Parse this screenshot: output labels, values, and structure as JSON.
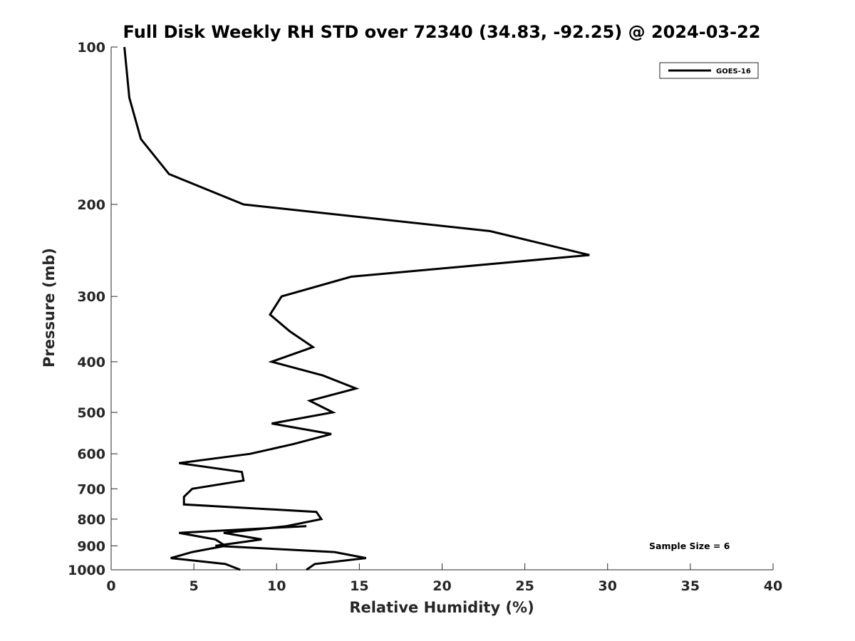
{
  "chart_data": {
    "type": "line",
    "title": "Full Disk Weekly RH STD over 72340 (34.83, -92.25) @ 2024-03-22",
    "xlabel": "Relative Humidity (%)",
    "ylabel": "Pressure (mb)",
    "xlim": [
      0,
      40
    ],
    "ylim": [
      100,
      1000
    ],
    "y_scale": "log",
    "y_reversed": true,
    "x_ticks": [
      0,
      5,
      10,
      15,
      20,
      25,
      30,
      35,
      40
    ],
    "x_tick_labels": [
      "0",
      "5",
      "10",
      "15",
      "20",
      "25",
      "30",
      "35",
      "40"
    ],
    "y_ticks": [
      100,
      200,
      300,
      400,
      500,
      600,
      700,
      800,
      900,
      1000
    ],
    "y_tick_labels": [
      "100",
      "200",
      "300",
      "400",
      "500",
      "600",
      "700",
      "800",
      "900",
      "1000"
    ],
    "grid": false,
    "legend_position": "top-right",
    "annotation": "Sample Size = 6",
    "series": [
      {
        "name": "GOES-16",
        "color": "#000000",
        "points": [
          [
            0.8,
            100
          ],
          [
            1.1,
            125
          ],
          [
            1.8,
            150
          ],
          [
            3.5,
            175
          ],
          [
            8.0,
            200
          ],
          [
            22.9,
            225
          ],
          [
            28.9,
            250
          ],
          [
            14.5,
            275
          ],
          [
            10.3,
            300
          ],
          [
            9.6,
            325
          ],
          [
            10.8,
            350
          ],
          [
            12.2,
            375
          ],
          [
            9.7,
            400
          ],
          [
            12.8,
            425
          ],
          [
            14.8,
            450
          ],
          [
            12.0,
            475
          ],
          [
            13.4,
            500
          ],
          [
            9.7,
            525
          ],
          [
            13.3,
            550
          ],
          [
            11.0,
            575
          ],
          [
            8.4,
            600
          ],
          [
            4.1,
            625
          ],
          [
            7.9,
            650
          ],
          [
            8.0,
            675
          ],
          [
            4.9,
            700
          ],
          [
            4.4,
            725
          ],
          [
            4.4,
            750
          ],
          [
            12.4,
            775
          ],
          [
            12.7,
            800
          ],
          [
            10.6,
            825
          ],
          [
            6.8,
            850
          ],
          [
            9.1,
            875
          ],
          [
            6.3,
            900
          ],
          [
            13.5,
            925
          ],
          [
            15.4,
            950
          ],
          [
            12.3,
            975
          ],
          [
            11.8,
            1000
          ]
        ],
        "lower_points": [
          [
            11.8,
            825
          ],
          [
            4.1,
            850
          ],
          [
            6.3,
            875
          ],
          [
            6.9,
            900
          ],
          [
            4.9,
            925
          ],
          [
            3.6,
            950
          ],
          [
            6.9,
            975
          ],
          [
            7.8,
            1000
          ]
        ]
      }
    ]
  }
}
